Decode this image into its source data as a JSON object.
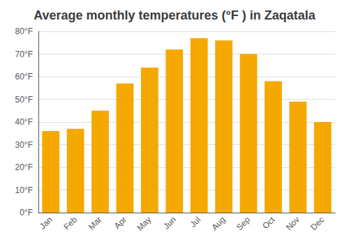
{
  "chart_data": {
    "type": "bar",
    "title": "Average monthly temperatures (°F ) in Zaqatala",
    "categories": [
      "Jan",
      "Feb",
      "Mar",
      "Apr",
      "May",
      "Jun",
      "Jul",
      "Aug",
      "Sep",
      "Oct",
      "Nov",
      "Dec"
    ],
    "values": [
      36,
      37,
      45,
      57,
      64,
      72,
      77,
      76,
      70,
      58,
      49,
      40
    ],
    "color": "#F5A800",
    "ylim": [
      0,
      80
    ],
    "yticks": [
      {
        "value": 0,
        "label": "0°F"
      },
      {
        "value": 10,
        "label": "10°F"
      },
      {
        "value": 20,
        "label": "20°F"
      },
      {
        "value": 30,
        "label": "30°F"
      },
      {
        "value": 40,
        "label": "40°F"
      },
      {
        "value": 50,
        "label": "50°F"
      },
      {
        "value": 60,
        "label": "60°F"
      },
      {
        "value": 70,
        "label": "70°F"
      },
      {
        "value": 80,
        "label": "80°F"
      }
    ],
    "grid": true
  }
}
